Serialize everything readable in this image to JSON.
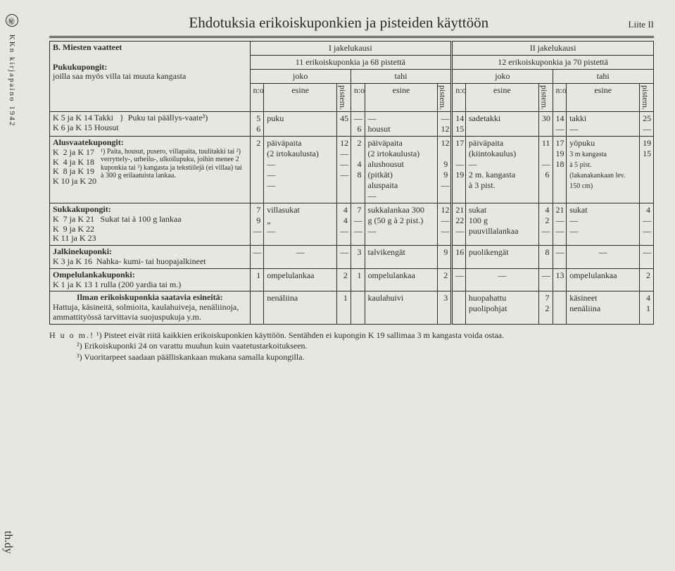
{
  "sidetext": {
    "mark": "㊙",
    "publisher": "KKn kirjapaino 1942"
  },
  "title": "Ehdotuksia erikoiskuponkien ja pisteiden käyttöön",
  "liite": "Liite II",
  "section_b": "B. Miesten vaatteet",
  "headers": {
    "jk1": "I jakelukausi",
    "jk2": "II jakelukausi",
    "sub1": "11 erikoiskuponkia ja 68 pistettä",
    "sub2": "12 erikoiskuponkia ja 70 pistettä",
    "joko": "joko",
    "tahi": "tahi",
    "no": "n:o",
    "esine": "esine",
    "pistem": "pistem."
  },
  "pukukupongit": {
    "title": "Pukukupongit:",
    "note": "joilla saa myös villa tai muuta kangasta",
    "r1_left": "K 5 ja K 14 Takki",
    "r2_left": "K 6 ja K 15 Housut",
    "r_brace": "Puku tai päällys-vaate³)",
    "n1a": "5",
    "n1b": "6",
    "t1": "puku",
    "p1": "45",
    "n2a": "—",
    "n2b": "6",
    "t2a": "—",
    "t2b": "housut",
    "p2a": "—",
    "p2b": "12",
    "n3a": "14",
    "n3b": "15",
    "t3": "sadetakki",
    "p3": "30",
    "n4a": "14",
    "n4b": "—",
    "t4a": "takki",
    "t4b": "—",
    "p4a": "25",
    "p4b": "—"
  },
  "alus": {
    "title": "Alusvaatekupongit:",
    "rows_left": "K  2 ja K 17\nK  4 ja K 18\nK  8 ja K 19\nK 10 ja K 20",
    "desc": "¹) Paita, housut, pusero, villapaita, tuulitakki tai ²) verryttely-, urheilu-, ulkoilupuku, joihin menee 2 kuponkia tai ³) kangasta ja tekstiilejä (ei villaa) tai à 300 g erilaatuista lankaa.",
    "c1": {
      "n": "2",
      "t": "päiväpaita\n(2 irtokaulusta)",
      "p": "12"
    },
    "c1b": {
      "t": "—"
    },
    "c2": {
      "n": "2",
      "t": "päiväpaita\n(2 irtokaulusta)",
      "p": "12"
    },
    "c2b": {
      "n": "4",
      "t": "alushousut\n(pitkät)",
      "p": "9"
    },
    "c2c": {
      "n": "8",
      "t": "aluspaita",
      "p": "9"
    },
    "c3": {
      "n": "17",
      "t": "päiväpaita\n(kiintokaulus)",
      "p": "11"
    },
    "c3b": {
      "n": "19",
      "t": "2 m. kangasta\nà 3 pist.",
      "p": "6"
    },
    "c4": {
      "n": "17\n19",
      "t": "yöpuku",
      "p": "19"
    },
    "c4b": {
      "n": "18",
      "t": "3 m kangasta\nà 5 pist.\n(lakanakankaan lev. 150 cm)",
      "p": "15"
    }
  },
  "sukka": {
    "title": "Sukkakupongit:",
    "rows_left": "K  7 ja K 21\nK  9 ja K 22\nK 11 ja K 23",
    "desc": "Sukat tai à 100 g lankaa",
    "c1": {
      "n": "7\n9\n—",
      "t": "villasukat\n„\n—",
      "p": "4\n4\n—"
    },
    "c2": {
      "n": "7\n—\n—",
      "t": "sukkalankaa 300\ng (50 g à 2 pist.)\n—",
      "p": "12\n—\n—"
    },
    "c3": {
      "n": "21\n22\n—",
      "t": "sukat\n100 g puuvillalankaa",
      "p": "4\n2\n—"
    },
    "c4": {
      "n": "21\n—\n—",
      "t": "sukat\n—\n—",
      "p": "4\n—\n—"
    }
  },
  "jalkine": {
    "title": "Jalkinekuponki:",
    "left": "K 3 ja K 16",
    "desc": "Nahka- kumi- tai huopajalkineet",
    "c1": {
      "t": "—"
    },
    "c2": {
      "n": "3",
      "t": "talvikengät",
      "p": "9"
    },
    "c3": {
      "n": "16",
      "t": "puolikengät",
      "p": "8"
    },
    "c4": {
      "t": "—"
    }
  },
  "ompelu": {
    "title": "Ompelulankakuponki:",
    "left": "K 1 ja K 13    1 rulla (200 yardia tai m.)",
    "c1": {
      "n": "1",
      "t": "ompelulankaa",
      "p": "2"
    },
    "c2": {
      "n": "1",
      "t": "ompelulankaa",
      "p": "2"
    },
    "c3": {
      "t": "—"
    },
    "c4": {
      "n": "13",
      "t": "ompelulankaa",
      "p": "2"
    }
  },
  "ilman": {
    "title": "Ilman erikoiskuponkia saatavia esineitä:",
    "desc": "Hattuja, käsineitä, solmioita, kaulahuiveja, nenäliinoja, ammattityössä tarvittavia suojuspukuja y.m.",
    "c1": {
      "t": "nenäliina",
      "p": "1"
    },
    "c2": {
      "t": "kaulahuivi",
      "p": "3"
    },
    "c3": {
      "t": "huopahattu\npuolipohjat",
      "p": "7\n2"
    },
    "c4": {
      "t": "käsineet\nnenäliina",
      "p": "4\n1"
    }
  },
  "foot": {
    "huom": "H u o m.!",
    "f1": "¹) Pisteet eivät riitä kaikkien erikoiskuponkien käyttöön.  Sentähden ei kupongin K 19 sallimaa 3 m kangasta voida ostaa.",
    "f2": "²) Erikoiskuponki 24 on varattu muuhun kuin vaatetustarkoitukseen.",
    "f3": "³) Vuoritarpeet saadaan päälliskankaan mukana samalla kupongilla."
  },
  "cursive": "th.dy"
}
